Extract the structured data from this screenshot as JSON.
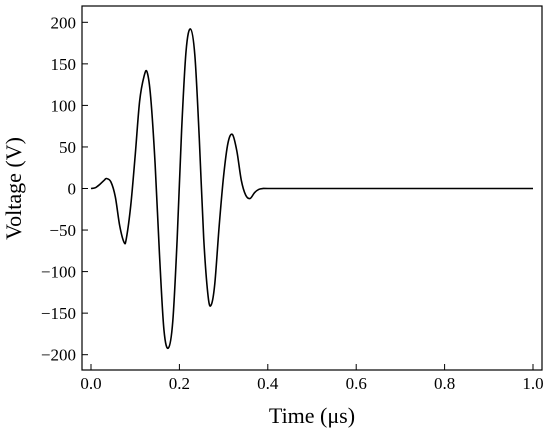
{
  "chart_data": {
    "type": "line",
    "title": "",
    "xlabel": "Time (μs)",
    "ylabel": "Voltage (V)",
    "xlim": [
      0.0,
      1.0
    ],
    "ylim": [
      -210,
      210
    ],
    "xticks": [
      0.0,
      0.2,
      0.4,
      0.6,
      0.8,
      1.0
    ],
    "xtick_labels": [
      "0.0",
      "0.2",
      "0.4",
      "0.6",
      "0.8",
      "1.0"
    ],
    "yticks": [
      -200,
      -150,
      -100,
      -50,
      0,
      50,
      100,
      150,
      200
    ],
    "ytick_labels": [
      "−200",
      "−150",
      "−100",
      "−50",
      "0",
      "50",
      "100",
      "150",
      "200"
    ],
    "grid": false,
    "legend": "none",
    "line_color": "#000000",
    "series": [
      {
        "x": [
          0.0,
          0.01,
          0.02,
          0.03,
          0.035,
          0.045,
          0.055,
          0.065,
          0.075,
          0.08,
          0.09,
          0.1,
          0.11,
          0.12,
          0.127,
          0.135,
          0.145,
          0.155,
          0.165,
          0.175,
          0.185,
          0.195,
          0.205,
          0.215,
          0.225,
          0.235,
          0.245,
          0.255,
          0.265,
          0.272,
          0.28,
          0.29,
          0.3,
          0.31,
          0.32,
          0.33,
          0.34,
          0.35,
          0.36,
          0.37,
          0.38,
          0.39,
          0.4,
          0.5,
          0.6,
          0.7,
          0.8,
          0.9,
          1.0
        ],
        "y": [
          0,
          1,
          5,
          10,
          12,
          8,
          -10,
          -45,
          -65,
          -60,
          -20,
          40,
          105,
          135,
          140,
          110,
          30,
          -80,
          -170,
          -192,
          -160,
          -60,
          70,
          165,
          192,
          160,
          60,
          -60,
          -130,
          -140,
          -115,
          -45,
          15,
          55,
          65,
          45,
          10,
          -8,
          -12,
          -5,
          -1,
          0,
          0,
          0,
          0,
          0,
          0,
          0,
          0
        ]
      }
    ]
  }
}
